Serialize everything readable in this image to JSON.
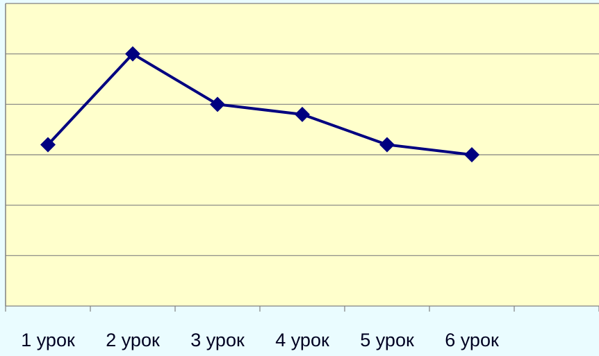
{
  "chart_data": {
    "type": "line",
    "categories": [
      "1 урок",
      "2 урок",
      "3 урок",
      "4 урок",
      "5 урок",
      "6 урок",
      null
    ],
    "series": [
      {
        "color": "#000080",
        "values": [
          3.2,
          5.0,
          4.0,
          3.8,
          3.2,
          3.0,
          null
        ]
      }
    ],
    "ylim": [
      0,
      6
    ],
    "yticks": [
      0,
      1,
      2,
      3,
      4,
      5,
      6
    ],
    "grid": true
  }
}
